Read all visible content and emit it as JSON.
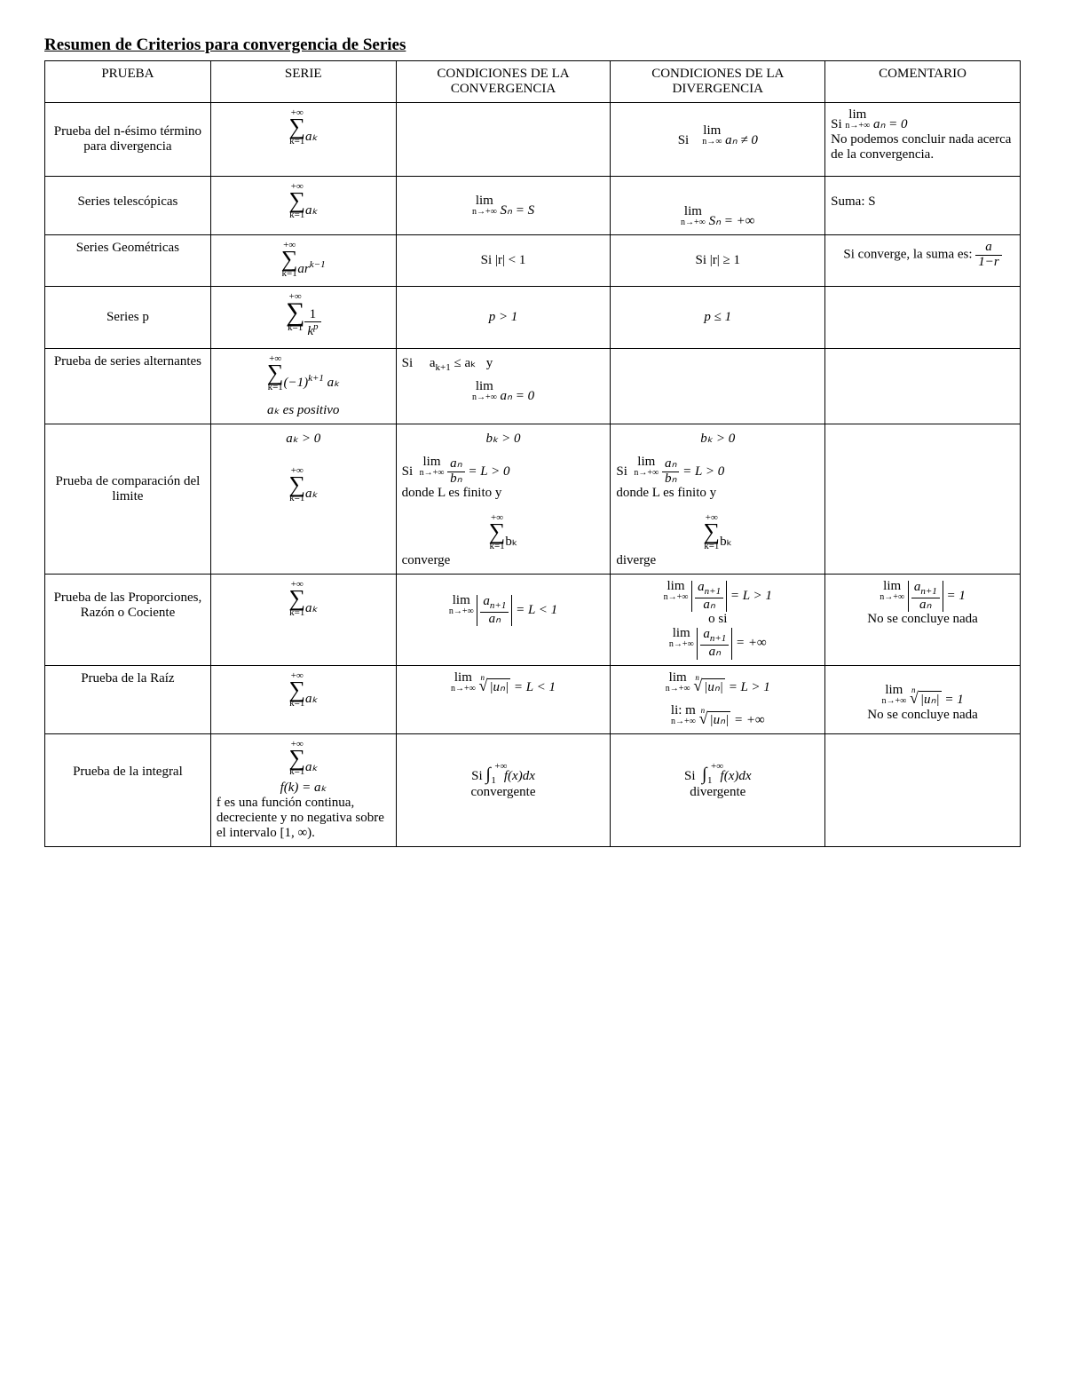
{
  "title": "Resumen de Criterios para convergencia de Series",
  "col_widths": [
    "17%",
    "19%",
    "22%",
    "22%",
    "20%"
  ],
  "headers": {
    "c1": "PRUEBA",
    "c2": "SERIE",
    "c3": "CONDICIONES DE LA CONVERGENCIA",
    "c4": "CONDICIONES DE LA DIVERGENCIA",
    "c5": "COMENTARIO"
  },
  "rows": [
    {
      "prueba": "Prueba del n-ésimo término para divergencia",
      "serie_sum_lower": "k=1",
      "serie_sum_upper": "+∞",
      "serie_term": "aₖ",
      "conv": "",
      "div_prefix": "Si",
      "div_lim_sub": "n→∞",
      "div_lim_body": "aₙ ≠ 0",
      "com_prefix": "Si",
      "com_lim_sub": "n→+∞",
      "com_lim_body": "aₙ = 0",
      "com_rest": "No podemos concluir nada acerca de la convergencia."
    },
    {
      "prueba": "Series telescópicas",
      "serie_sum_lower": "k=1",
      "serie_sum_upper": "+∞",
      "serie_term": "aₖ",
      "conv_lim_sub": "n→+∞",
      "conv_lim_body": "Sₙ  =   S",
      "div_lim_sub": "n→+∞",
      "div_lim_body": "Sₙ  =   +∞",
      "com": "Suma: S"
    },
    {
      "prueba": "Series Geométricas",
      "serie_sum_lower": "k=1",
      "serie_sum_upper": "+∞",
      "serie_term_html": "ar<sup>k−1</sup>",
      "conv": "Si   |r| < 1",
      "div": "Si  |r| ≥ 1",
      "com_prefix": "Si  converge, la suma es:",
      "com_frac_num": "a",
      "com_frac_den": "1−r"
    },
    {
      "prueba": "Series p",
      "serie_sum_lower": "k=1",
      "serie_sum_upper": "+∞",
      "serie_frac_num": "1",
      "serie_frac_den_html": "k<sup>p</sup>",
      "conv": "p > 1",
      "div": "p ≤ 1",
      "com": ""
    },
    {
      "prueba": "Prueba  de series alternantes",
      "serie_sum_lower": "k=1",
      "serie_sum_upper": "+∞",
      "serie_term_html": "(−1)<sup>k+1</sup> aₖ",
      "serie_note": "aₖ es positivo",
      "conv_line1_html": "Si &nbsp;&nbsp;&nbsp; a<sub>k+1</sub> ≤ aₖ &nbsp;&nbsp;y",
      "conv_lim_sub": "n→+∞",
      "conv_lim_body": "aₙ = 0",
      "div": "",
      "com": ""
    },
    {
      "prueba": "Prueba  de comparación del limite",
      "serie_top": "aₖ > 0",
      "serie_sum_lower": "k=1",
      "serie_sum_upper": "+∞",
      "serie_term": "aₖ",
      "conv_top": "bₖ > 0",
      "conv_prefix": "Si",
      "conv_lim_sub": "n→+∞",
      "conv_frac_num": "aₙ",
      "conv_frac_den": "bₙ",
      "conv_after": "= L > 0",
      "conv_note": "donde  L es finito y",
      "conv_sum_lower": "k=1",
      "conv_sum_upper": "+∞",
      "conv_sum_term": "bₖ",
      "conv_tail": "converge",
      "div_top": "bₖ > 0",
      "div_prefix": "Si",
      "div_lim_sub": "n→+∞",
      "div_frac_num": "aₙ",
      "div_frac_den": "bₙ",
      "div_after": "= L > 0",
      "div_note": "donde  L es finito y",
      "div_sum_lower": "k=1",
      "div_sum_upper": "+∞",
      "div_sum_term": "bₖ",
      "div_tail": "diverge",
      "com": ""
    },
    {
      "prueba": "Prueba de las Proporciones, Razón o Cociente",
      "serie_sum_lower": "k=1",
      "serie_sum_upper": "+∞",
      "serie_term": "aₖ",
      "conv_lim_sub": "n→+∞",
      "conv_abs_frac_num_html": "a<sub>n+1</sub>",
      "conv_abs_frac_den": "aₙ",
      "conv_after": "= L < 1",
      "div_lim_sub": "n→+∞",
      "div_abs_frac_num_html": "a<sub>n+1</sub>",
      "div_abs_frac_den": "aₙ",
      "div_after1": "= L > 1",
      "div_mid": "o   si",
      "div_after2": "= +∞",
      "com_lim_sub": "n→+∞",
      "com_abs_frac_num_html": "a<sub>n+1</sub>",
      "com_abs_frac_den": "aₙ",
      "com_after": "= 1",
      "com_rest": "No se concluye nada"
    },
    {
      "prueba": "Prueba de la Raíz",
      "serie_sum_lower": "k=1",
      "serie_sum_upper": "+∞",
      "serie_term": "aₖ",
      "root_index": "n",
      "root_body": "|uₙ|",
      "conv_lim_sub": "n→+∞",
      "conv_after": "= L < 1",
      "div_lim_sub": "n→+∞",
      "div_after1": "= L > 1",
      "div_lim2_label": "li: m",
      "div_after2": "= +∞",
      "com_lim_sub": "n→+∞",
      "com_after": "= 1",
      "com_rest": "No se concluye nada"
    },
    {
      "prueba": "Prueba  de la integral",
      "serie_sum_lower": "k=1",
      "serie_sum_upper": "+∞",
      "serie_term": "aₖ",
      "serie_fk": "f(k) = aₖ",
      "serie_note": "f es una función continua, decreciente y no negativa sobre el intervalo [1, ∞).",
      "int_prefix": "Si",
      "int_lower": "1",
      "int_upper": "+∞",
      "int_body": "f(x)dx",
      "conv_tail": "convergente",
      "div_tail": "divergente",
      "com": ""
    }
  ]
}
